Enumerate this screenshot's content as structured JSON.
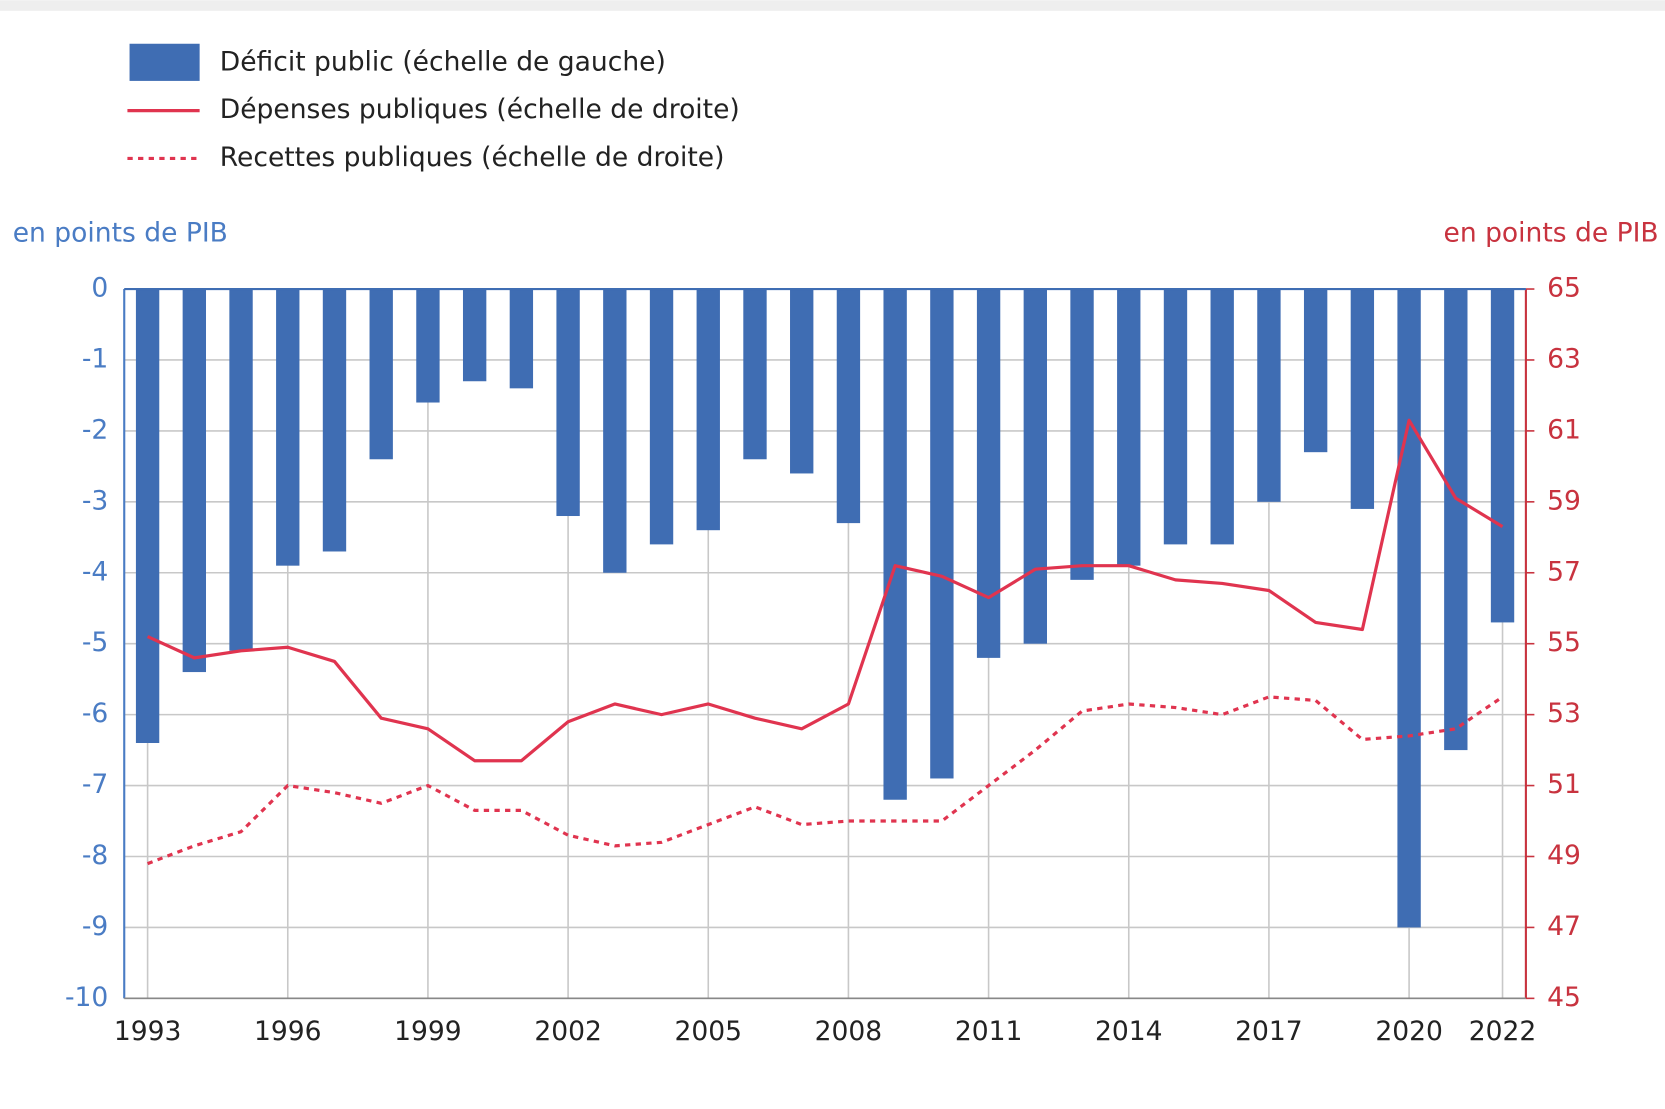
{
  "chart_data": {
    "type": "bar_line",
    "ylabel": "en points de PIB",
    "y2label": "en points de PIB",
    "x": [
      1993,
      1994,
      1995,
      1996,
      1997,
      1998,
      1999,
      2000,
      2001,
      2002,
      2003,
      2004,
      2005,
      2006,
      2007,
      2008,
      2009,
      2010,
      2011,
      2012,
      2013,
      2014,
      2015,
      2016,
      2017,
      2018,
      2019,
      2020,
      2021,
      2022
    ],
    "xlim": [
      1992.5,
      2022.5
    ],
    "xticks": [
      1993,
      1996,
      1999,
      2002,
      2005,
      2008,
      2011,
      2014,
      2017,
      2020,
      2022
    ],
    "ylim": [
      -10,
      0
    ],
    "yticks": [
      0,
      -1,
      -2,
      -3,
      -4,
      -5,
      -6,
      -7,
      -8,
      -9,
      -10
    ],
    "y2lim": [
      45,
      65
    ],
    "y2ticks": [
      65,
      63,
      61,
      59,
      57,
      55,
      53,
      51,
      49,
      47,
      45
    ],
    "grid": true,
    "series": [
      {
        "name": "Déficit public (échelle de gauche)",
        "type": "bar",
        "color": "#3f6db3",
        "values": [
          -6.4,
          -5.4,
          -5.1,
          -3.9,
          -3.7,
          -2.4,
          -1.6,
          -1.3,
          -1.4,
          -3.2,
          -4.0,
          -3.6,
          -3.4,
          -2.4,
          -2.6,
          -3.3,
          -7.2,
          -6.9,
          -5.2,
          -5.0,
          -4.1,
          -3.9,
          -3.6,
          -3.6,
          -3.0,
          -2.3,
          -3.1,
          -9.0,
          -6.5,
          -4.7
        ]
      },
      {
        "name": "Dépenses publiques (échelle de droite)",
        "type": "line",
        "axis": "y2",
        "color": "#e0344f",
        "style": "solid",
        "values": [
          55.2,
          54.6,
          54.8,
          54.9,
          54.5,
          52.9,
          52.6,
          51.7,
          51.7,
          52.8,
          53.3,
          53.0,
          53.3,
          52.9,
          52.6,
          53.3,
          57.2,
          56.9,
          56.3,
          57.1,
          57.2,
          57.2,
          56.8,
          56.7,
          56.5,
          55.6,
          55.4,
          61.3,
          59.1,
          58.3
        ]
      },
      {
        "name": "Recettes publiques (échelle de droite)",
        "type": "line",
        "axis": "y2",
        "color": "#e0344f",
        "style": "dotted",
        "values": [
          48.8,
          49.3,
          49.7,
          51.0,
          50.8,
          50.5,
          51.0,
          50.3,
          50.3,
          49.6,
          49.3,
          49.4,
          49.9,
          50.4,
          49.9,
          50.0,
          50.0,
          50.0,
          51.0,
          52.0,
          53.1,
          53.3,
          53.2,
          53.0,
          53.5,
          53.4,
          52.3,
          52.4,
          52.6,
          53.5
        ]
      }
    ]
  }
}
